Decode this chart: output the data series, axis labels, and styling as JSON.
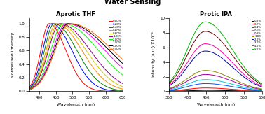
{
  "title": "Water Sensing",
  "title_fontsize": 7,
  "title_fontweight": "bold",
  "left_title": "Aprotic THF",
  "left_xlabel": "Wavelength (nm)",
  "left_ylabel": "Normalized Intensity",
  "left_xlim": [
    370,
    650
  ],
  "left_ylim": [
    0.0,
    1.08
  ],
  "left_yticks": [
    0.0,
    0.2,
    0.4,
    0.6,
    0.8,
    1.0
  ],
  "left_xticks": [
    400,
    450,
    500,
    550,
    600,
    650
  ],
  "right_title": "Protic IPA",
  "right_xlabel": "Wavelength (nm)",
  "right_ylabel": "Intensity (a.u.) X10⁻⁶",
  "right_xlim": [
    350,
    600
  ],
  "right_ylim": [
    0,
    10
  ],
  "right_yticks": [
    0,
    2,
    4,
    6,
    8,
    10
  ],
  "right_xticks": [
    350,
    400,
    450,
    500,
    550,
    600
  ],
  "thf_labels": [
    "0.00%",
    "0.20%",
    "0.40%",
    "0.60%",
    "0.80%",
    "1.00%",
    "2.00%",
    "3.00%",
    "4.00%",
    "5.00%"
  ],
  "thf_colors": [
    "#ff0000",
    "#0000ff",
    "#008000",
    "#ff8800",
    "#cccc00",
    "#880088",
    "#00ff00",
    "#ff00ff",
    "#000000",
    "#ff6600"
  ],
  "thf_peak_wavelengths": [
    430,
    438,
    445,
    452,
    458,
    463,
    473,
    482,
    488,
    493
  ],
  "thf_peak_heights": [
    1.0,
    1.0,
    1.0,
    1.0,
    1.0,
    1.0,
    1.0,
    1.0,
    1.0,
    1.0
  ],
  "thf_left_widths": [
    25,
    27,
    29,
    31,
    33,
    35,
    38,
    41,
    43,
    45
  ],
  "thf_right_widths": [
    50,
    60,
    68,
    76,
    83,
    90,
    105,
    115,
    122,
    128
  ],
  "ipa_labels": [
    "0.0%",
    "0.2%",
    "0.4%",
    "0.6%",
    "0.8%",
    "1.0%",
    "2.0%",
    "3.0%",
    "4.0%",
    "5.0%"
  ],
  "ipa_colors": [
    "#000000",
    "#ff0000",
    "#0055ff",
    "#00cccc",
    "#aa00aa",
    "#888800",
    "#0000aa",
    "#660000",
    "#ff00aa",
    "#00bb00"
  ],
  "ipa_peak_wavelengths": [
    447,
    447,
    447,
    447,
    447,
    447,
    447,
    447,
    447,
    447
  ],
  "ipa_peak_heights": [
    0.12,
    0.45,
    1.05,
    1.6,
    2.3,
    2.85,
    5.5,
    8.2,
    6.5,
    9.5
  ],
  "ipa_left_widths": [
    48,
    48,
    48,
    48,
    48,
    48,
    48,
    48,
    48,
    48
  ],
  "ipa_right_widths": [
    72,
    72,
    72,
    72,
    72,
    72,
    72,
    72,
    72,
    72
  ]
}
